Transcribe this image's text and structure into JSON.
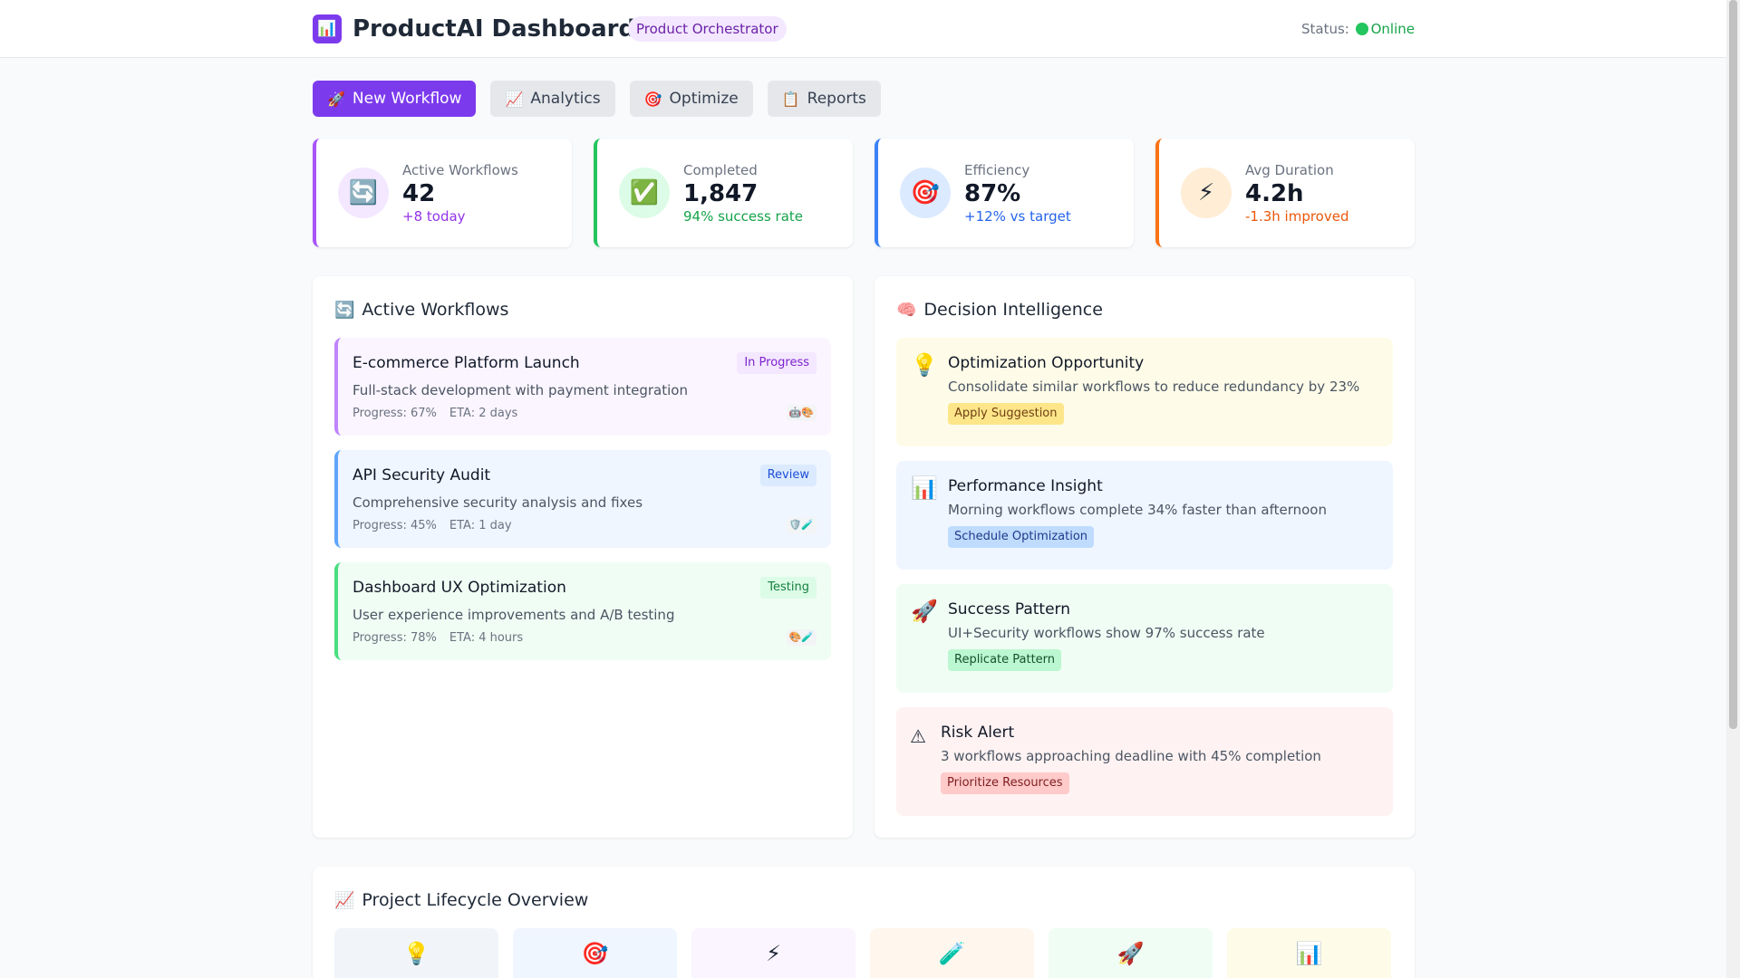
{
  "header": {
    "brand_icon": "chart-icon",
    "title": "ProductAI Dashboard",
    "role_badge": "Product Orchestrator",
    "status_label": "Status:",
    "status_value": "Online",
    "status_color": "#22c55e"
  },
  "actions": [
    {
      "icon": "🚀",
      "icon_name": "rocket-icon",
      "label": "New Workflow",
      "primary": true
    },
    {
      "icon": "📈",
      "icon_name": "chart-up-icon",
      "label": "Analytics"
    },
    {
      "icon": "🎯",
      "icon_name": "target-icon",
      "label": "Optimize"
    },
    {
      "icon": "📋",
      "icon_name": "clipboard-icon",
      "label": "Reports"
    }
  ],
  "stats": [
    {
      "icon": "🔄",
      "label": "Active Workflows",
      "value": "42",
      "sub": "+8 today",
      "accent": "#a855f7"
    },
    {
      "icon": "✅",
      "label": "Completed",
      "value": "1,847",
      "sub": "94% success rate",
      "accent": "#22c55e"
    },
    {
      "icon": "🎯",
      "label": "Efficiency",
      "value": "87%",
      "sub": "+12% vs target",
      "accent": "#3b82f6"
    },
    {
      "icon": "⚡",
      "label": "Avg Duration",
      "value": "4.2h",
      "sub": "-1.3h improved",
      "accent": "#f97316"
    }
  ],
  "workflows_panel": {
    "icon": "🔄",
    "title": "Active Workflows",
    "items": [
      {
        "title": "E-commerce Platform Launch",
        "status": "In Progress",
        "description": "Full-stack development with payment integration",
        "progress": "Progress: 67%",
        "eta": "ETA: 2 days",
        "agents": "🤖🎨",
        "progress_value": 0.67
      },
      {
        "title": "API Security Audit",
        "status": "Review",
        "description": "Comprehensive security analysis and fixes",
        "progress": "Progress: 45%",
        "eta": "ETA: 1 day",
        "agents": "🛡️🧪",
        "progress_value": 0.45
      },
      {
        "title": "Dashboard UX Optimization",
        "status": "Testing",
        "description": "User experience improvements and A/B testing",
        "progress": "Progress: 78%",
        "eta": "ETA: 4 hours",
        "agents": "🎨🧪",
        "progress_value": 0.78
      }
    ]
  },
  "decision_panel": {
    "icon": "🧠",
    "title": "Decision Intelligence",
    "items": [
      {
        "icon": "💡",
        "icon_name": "lightbulb-icon",
        "title": "Optimization Opportunity",
        "description": "Consolidate similar workflows to reduce redundancy by 23%",
        "action": "Apply Suggestion"
      },
      {
        "icon": "📊",
        "icon_name": "bar-chart-icon",
        "title": "Performance Insight",
        "description": "Morning workflows complete 34% faster than afternoon",
        "action": "Schedule Optimization"
      },
      {
        "icon": "🚀",
        "icon_name": "rocket-icon",
        "title": "Success Pattern",
        "description": "UI+Security workflows show 97% success rate",
        "action": "Replicate Pattern"
      },
      {
        "icon": "⚠",
        "icon_name": "warning-icon",
        "title": "Risk Alert",
        "description": "3 workflows approaching deadline with 45% completion",
        "action": "Prioritize Resources"
      }
    ]
  },
  "lifecycle_panel": {
    "icon": "📈",
    "title": "Project Lifecycle Overview",
    "stages": [
      {
        "icon": "💡",
        "icon_name": "lightbulb-icon",
        "bg": "#f1f5f9"
      },
      {
        "icon": "🎯",
        "icon_name": "target-icon",
        "bg": "#eff6ff"
      },
      {
        "icon": "⚡",
        "icon_name": "lightning-icon",
        "bg": "#faf5ff"
      },
      {
        "icon": "🧪",
        "icon_name": "test-tube-icon",
        "bg": "#fff7ed"
      },
      {
        "icon": "🚀",
        "icon_name": "rocket-icon",
        "bg": "#f0fdf4"
      },
      {
        "icon": "📊",
        "icon_name": "bar-chart-icon",
        "bg": "#fefce8"
      }
    ]
  }
}
